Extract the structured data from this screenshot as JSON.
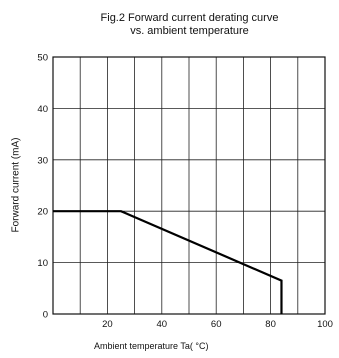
{
  "chart_data": {
    "type": "line",
    "title": "Fig.2 Forward current derating curve",
    "subtitle": "vs. ambient temperature",
    "xlabel": "Ambient temperature Ta( °C)",
    "ylabel": "Forward current (mA)",
    "xlim": [
      0,
      100
    ],
    "ylim": [
      0,
      50
    ],
    "x_ticks": [
      "20",
      "40",
      "60",
      "80",
      "100"
    ],
    "y_ticks": [
      "0",
      "10",
      "20",
      "30",
      "40",
      "50"
    ],
    "grid": true,
    "series": [
      {
        "x": [
          0,
          25,
          84,
          84
        ],
        "y": [
          20,
          20,
          6.5,
          0
        ]
      }
    ]
  }
}
